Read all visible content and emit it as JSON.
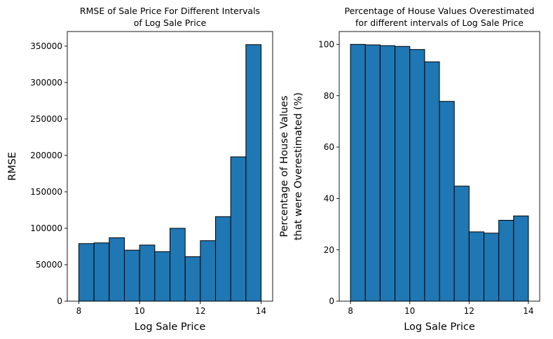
{
  "chart_data": [
    {
      "type": "bar",
      "title_lines": [
        "RMSE of Sale Price For Different Intervals",
        "of Log Sale Price"
      ],
      "xlabel": "Log Sale Price",
      "ylabel_lines": [
        "RMSE"
      ],
      "xlim": [
        7.62,
        14.38
      ],
      "ylim": [
        0,
        370000
      ],
      "xticks": [
        8,
        10,
        12,
        14
      ],
      "yticks": [
        0,
        50000,
        100000,
        150000,
        200000,
        250000,
        300000,
        350000
      ],
      "bin_edges": [
        8.0,
        8.5,
        9.0,
        9.5,
        10.0,
        10.5,
        11.0,
        11.5,
        12.0,
        12.5,
        13.0,
        13.5,
        14.0
      ],
      "values": [
        79000,
        80000,
        87000,
        70000,
        77000,
        68000,
        100000,
        61000,
        83000,
        116000,
        198000,
        352000
      ],
      "bar_color": "#1f77b4",
      "edge_color": "#000000"
    },
    {
      "type": "bar",
      "title_lines": [
        "Percentage of House Values Overestimated",
        "for different intervals of Log Sale Price"
      ],
      "xlabel": "Log Sale Price",
      "ylabel_lines": [
        "Percentage of House Values",
        "that were Overestimated (%)"
      ],
      "xlim": [
        7.62,
        14.38
      ],
      "ylim": [
        0,
        105
      ],
      "xticks": [
        8,
        10,
        12,
        14
      ],
      "yticks": [
        0,
        20,
        40,
        60,
        80,
        100
      ],
      "bin_edges": [
        8.0,
        8.5,
        9.0,
        9.5,
        10.0,
        10.5,
        11.0,
        11.5,
        12.0,
        12.5,
        13.0,
        13.5,
        14.0
      ],
      "values": [
        100.0,
        99.8,
        99.5,
        99.2,
        98.0,
        93.2,
        77.8,
        44.8,
        27.0,
        26.5,
        31.5,
        33.2
      ],
      "bar_color": "#1f77b4",
      "edge_color": "#000000"
    }
  ]
}
